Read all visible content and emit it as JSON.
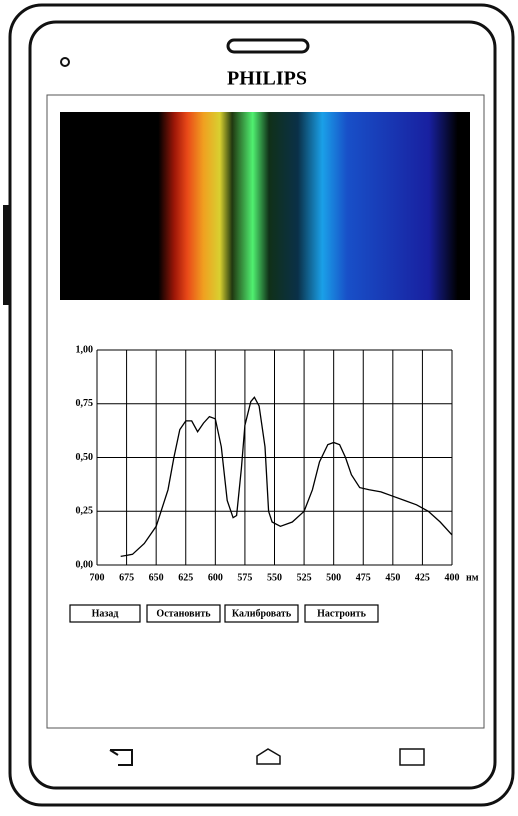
{
  "header": {
    "title": "PHILIPS"
  },
  "chart_data": {
    "type": "line",
    "x": [
      680,
      670,
      660,
      650,
      640,
      635,
      630,
      625,
      620,
      615,
      610,
      605,
      600,
      595,
      590,
      585,
      582,
      578,
      575,
      570,
      567,
      563,
      558,
      555,
      552,
      545,
      535,
      525,
      518,
      512,
      505,
      500,
      495,
      490,
      485,
      478,
      470,
      460,
      450,
      440,
      430,
      420,
      410,
      400
    ],
    "values": [
      0.04,
      0.05,
      0.1,
      0.18,
      0.35,
      0.5,
      0.63,
      0.67,
      0.67,
      0.62,
      0.66,
      0.69,
      0.68,
      0.55,
      0.3,
      0.22,
      0.23,
      0.45,
      0.65,
      0.76,
      0.78,
      0.74,
      0.55,
      0.25,
      0.2,
      0.18,
      0.2,
      0.25,
      0.35,
      0.48,
      0.56,
      0.57,
      0.56,
      0.5,
      0.42,
      0.36,
      0.35,
      0.34,
      0.32,
      0.3,
      0.28,
      0.25,
      0.2,
      0.14
    ],
    "color": "#000000",
    "xlim": [
      700,
      400
    ],
    "xticks": [
      700,
      675,
      650,
      625,
      600,
      575,
      550,
      525,
      500,
      475,
      450,
      425,
      400
    ],
    "ylim": [
      0,
      1
    ],
    "yticks": [
      {
        "value": 0,
        "label": "0,00"
      },
      {
        "value": 0.25,
        "label": "0,25"
      },
      {
        "value": 0.5,
        "label": "0,50"
      },
      {
        "value": 0.75,
        "label": "0,75"
      },
      {
        "value": 1,
        "label": "1,00"
      }
    ],
    "x_label": "нм",
    "grid": true
  },
  "buttons": [
    "Назад",
    "Остановить",
    "Калибровать",
    "Настроить"
  ]
}
